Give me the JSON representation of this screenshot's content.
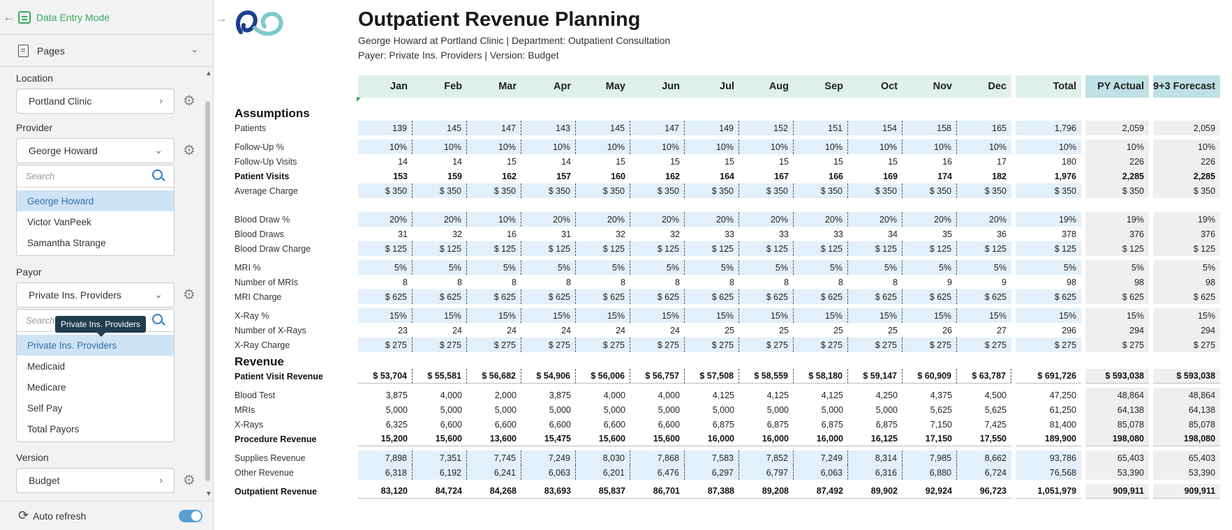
{
  "sidebar": {
    "mode_label": "Data Entry Mode",
    "pages_label": "Pages",
    "location": {
      "label": "Location",
      "value": "Portland Clinic"
    },
    "provider": {
      "label": "Provider",
      "value": "George Howard",
      "search_placeholder": "Search",
      "options": [
        "George Howard",
        "Victor VanPeek",
        "Samantha Strange"
      ]
    },
    "payor": {
      "label": "Payor",
      "value": "Private Ins. Providers",
      "search_placeholder": "Search",
      "tooltip": "Private Ins. Providers",
      "options": [
        "Private Ins. Providers",
        "Medicaid",
        "Medicare",
        "Self Pay",
        "Total Payors"
      ]
    },
    "version": {
      "label": "Version",
      "value": "Budget"
    },
    "auto_refresh_label": "Auto refresh",
    "auto_refresh_on": true
  },
  "report": {
    "title": "Outpatient Revenue Planning",
    "subtitle1": "George Howard at Portland Clinic | Department: Outpatient Consultation",
    "subtitle2": "Payer: Private Ins. Providers | Version: Budget",
    "columns": [
      "Jan",
      "Feb",
      "Mar",
      "Apr",
      "May",
      "Jun",
      "Jul",
      "Aug",
      "Sep",
      "Oct",
      "Nov",
      "Dec",
      "Total",
      "PY Actual",
      "9+3 Forecast"
    ],
    "sections": [
      {
        "title": "Assumptions",
        "rows": [
          {
            "label": "Patients",
            "style": "input",
            "values": [
              "139",
              "145",
              "147",
              "143",
              "145",
              "147",
              "149",
              "152",
              "151",
              "154",
              "158",
              "165",
              "1,796",
              "2,059",
              "2,059"
            ]
          },
          {
            "spacer": "s"
          },
          {
            "label": "Follow-Up %",
            "style": "input",
            "values": [
              "10%",
              "10%",
              "10%",
              "10%",
              "10%",
              "10%",
              "10%",
              "10%",
              "10%",
              "10%",
              "10%",
              "10%",
              "10%",
              "10%",
              "10%"
            ]
          },
          {
            "label": "Follow-Up Visits",
            "style": "calc",
            "values": [
              "14",
              "14",
              "15",
              "14",
              "15",
              "15",
              "15",
              "15",
              "15",
              "15",
              "16",
              "17",
              "180",
              "226",
              "226"
            ]
          },
          {
            "label": "Patient Visits",
            "style": "bold",
            "values": [
              "153",
              "159",
              "162",
              "157",
              "160",
              "162",
              "164",
              "167",
              "166",
              "169",
              "174",
              "182",
              "1,976",
              "2,285",
              "2,285"
            ]
          },
          {
            "label": "Average Charge",
            "style": "input",
            "values": [
              "$ 350",
              "$ 350",
              "$ 350",
              "$ 350",
              "$ 350",
              "$ 350",
              "$ 350",
              "$ 350",
              "$ 350",
              "$ 350",
              "$ 350",
              "$ 350",
              "$ 350",
              "$ 350",
              "$ 350"
            ]
          },
          {
            "spacer": "l"
          },
          {
            "label": "Blood Draw %",
            "style": "input",
            "values": [
              "20%",
              "20%",
              "10%",
              "20%",
              "20%",
              "20%",
              "20%",
              "20%",
              "20%",
              "20%",
              "20%",
              "20%",
              "19%",
              "19%",
              "19%"
            ]
          },
          {
            "label": "Blood Draws",
            "style": "calc",
            "values": [
              "31",
              "32",
              "16",
              "31",
              "32",
              "32",
              "33",
              "33",
              "33",
              "34",
              "35",
              "36",
              "378",
              "376",
              "376"
            ]
          },
          {
            "label": "Blood Draw Charge",
            "style": "input",
            "values": [
              "$ 125",
              "$ 125",
              "$ 125",
              "$ 125",
              "$ 125",
              "$ 125",
              "$ 125",
              "$ 125",
              "$ 125",
              "$ 125",
              "$ 125",
              "$ 125",
              "$ 125",
              "$ 125",
              "$ 125"
            ]
          },
          {
            "spacer": "s"
          },
          {
            "label": "MRI %",
            "style": "input",
            "values": [
              "5%",
              "5%",
              "5%",
              "5%",
              "5%",
              "5%",
              "5%",
              "5%",
              "5%",
              "5%",
              "5%",
              "5%",
              "5%",
              "5%",
              "5%"
            ]
          },
          {
            "label": "Number of MRIs",
            "style": "calc",
            "values": [
              "8",
              "8",
              "8",
              "8",
              "8",
              "8",
              "8",
              "8",
              "8",
              "8",
              "9",
              "9",
              "98",
              "98",
              "98"
            ]
          },
          {
            "label": "MRI Charge",
            "style": "input",
            "values": [
              "$ 625",
              "$ 625",
              "$ 625",
              "$ 625",
              "$ 625",
              "$ 625",
              "$ 625",
              "$ 625",
              "$ 625",
              "$ 625",
              "$ 625",
              "$ 625",
              "$ 625",
              "$ 625",
              "$ 625"
            ]
          },
          {
            "spacer": "s"
          },
          {
            "label": "X-Ray %",
            "style": "input",
            "values": [
              "15%",
              "15%",
              "15%",
              "15%",
              "15%",
              "15%",
              "15%",
              "15%",
              "15%",
              "15%",
              "15%",
              "15%",
              "15%",
              "15%",
              "15%"
            ]
          },
          {
            "label": "Number of X-Rays",
            "style": "calc",
            "values": [
              "23",
              "24",
              "24",
              "24",
              "24",
              "24",
              "25",
              "25",
              "25",
              "25",
              "26",
              "27",
              "296",
              "294",
              "294"
            ]
          },
          {
            "label": "X-Ray Charge",
            "style": "input",
            "values": [
              "$ 275",
              "$ 275",
              "$ 275",
              "$ 275",
              "$ 275",
              "$ 275",
              "$ 275",
              "$ 275",
              "$ 275",
              "$ 275",
              "$ 275",
              "$ 275",
              "$ 275",
              "$ 275",
              "$ 275"
            ]
          }
        ]
      },
      {
        "title": "Revenue",
        "rows": [
          {
            "label": "Patient Visit Revenue",
            "style": "pvr",
            "values": [
              "$ 53,704",
              "$ 55,581",
              "$ 56,682",
              "$ 54,906",
              "$ 56,006",
              "$ 56,757",
              "$ 57,508",
              "$ 58,559",
              "$ 58,180",
              "$ 59,147",
              "$ 60,909",
              "$ 63,787",
              "$ 691,726",
              "$ 593,038",
              "$ 593,038"
            ]
          },
          {
            "spacer": "s"
          },
          {
            "label": "Blood Test",
            "style": "calc",
            "values": [
              "3,875",
              "4,000",
              "2,000",
              "3,875",
              "4,000",
              "4,000",
              "4,125",
              "4,125",
              "4,125",
              "4,250",
              "4,375",
              "4,500",
              "47,250",
              "48,864",
              "48,864"
            ]
          },
          {
            "label": "MRIs",
            "style": "calc",
            "values": [
              "5,000",
              "5,000",
              "5,000",
              "5,000",
              "5,000",
              "5,000",
              "5,000",
              "5,000",
              "5,000",
              "5,000",
              "5,625",
              "5,625",
              "61,250",
              "64,138",
              "64,138"
            ]
          },
          {
            "label": "X-Rays",
            "style": "calc",
            "values": [
              "6,325",
              "6,600",
              "6,600",
              "6,600",
              "6,600",
              "6,600",
              "6,875",
              "6,875",
              "6,875",
              "6,875",
              "7,150",
              "7,425",
              "81,400",
              "85,078",
              "85,078"
            ]
          },
          {
            "label": "Procedure Revenue",
            "style": "boldline",
            "values": [
              "15,200",
              "15,600",
              "13,600",
              "15,475",
              "15,600",
              "15,600",
              "16,000",
              "16,000",
              "16,000",
              "16,125",
              "17,150",
              "17,550",
              "189,900",
              "198,080",
              "198,080"
            ]
          },
          {
            "spacer": "s"
          },
          {
            "label": "Supplies Revenue",
            "style": "input",
            "values": [
              "7,898",
              "7,351",
              "7,745",
              "7,249",
              "8,030",
              "7,868",
              "7,583",
              "7,852",
              "7,249",
              "8,314",
              "7,985",
              "8,662",
              "93,786",
              "65,403",
              "65,403"
            ]
          },
          {
            "label": "Other Revenue",
            "style": "input",
            "values": [
              "6,318",
              "6,192",
              "6,241",
              "6,063",
              "6,201",
              "6,476",
              "6,297",
              "6,797",
              "6,063",
              "6,316",
              "6,880",
              "6,724",
              "76,568",
              "53,390",
              "53,390"
            ]
          },
          {
            "spacer": "s"
          },
          {
            "label": "Outpatient Revenue",
            "style": "boldline",
            "values": [
              "83,120",
              "84,724",
              "84,268",
              "83,693",
              "85,837",
              "86,701",
              "87,388",
              "89,208",
              "87,492",
              "89,902",
              "92,924",
              "96,723",
              "1,051,979",
              "909,911",
              "909,911"
            ]
          }
        ]
      }
    ]
  }
}
